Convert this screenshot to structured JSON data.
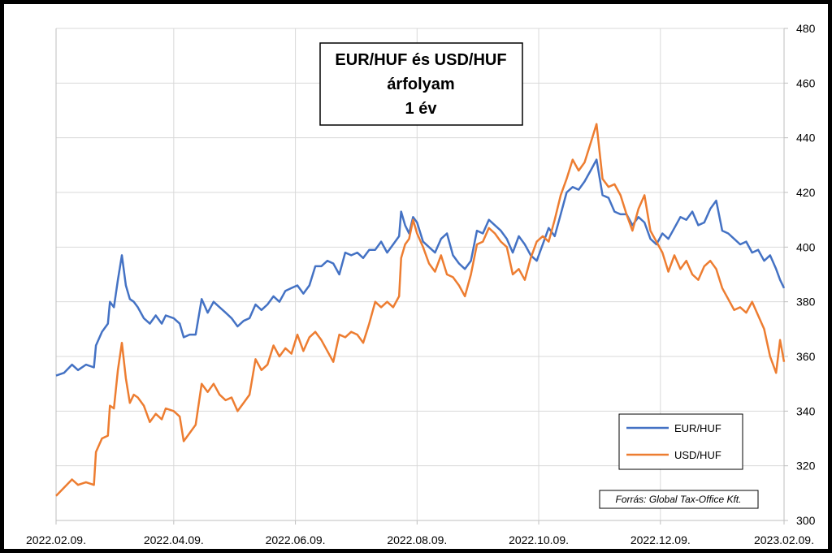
{
  "chart_data": {
    "type": "line",
    "title_lines": [
      "EUR/HUF és USD/HUF",
      "árfolyam",
      "1 év"
    ],
    "source": "Forrás: Global Tax-Office Kft.",
    "x_ticks": [
      "2022.02.09.",
      "2022.04.09.",
      "2022.06.09.",
      "2022.08.09.",
      "2022.10.09.",
      "2022.12.09.",
      "2023.02.09."
    ],
    "y_ticks": [
      300,
      320,
      340,
      360,
      380,
      400,
      420,
      440,
      460,
      480
    ],
    "ylim": [
      300,
      480
    ],
    "xlim": [
      "2022-02-09",
      "2023-02-09"
    ],
    "grid": true,
    "legend_position": "bottom-right",
    "y_axis_side": "right",
    "series": [
      {
        "name": "EUR/HUF",
        "color": "#4472c4",
        "points": [
          [
            "2022-02-09",
            353
          ],
          [
            "2022-02-13",
            354
          ],
          [
            "2022-02-17",
            357
          ],
          [
            "2022-02-20",
            355
          ],
          [
            "2022-02-24",
            357
          ],
          [
            "2022-02-28",
            356
          ],
          [
            "2022-03-01",
            364
          ],
          [
            "2022-03-04",
            369
          ],
          [
            "2022-03-07",
            372
          ],
          [
            "2022-03-08",
            380
          ],
          [
            "2022-03-10",
            378
          ],
          [
            "2022-03-12",
            388
          ],
          [
            "2022-03-14",
            397
          ],
          [
            "2022-03-16",
            386
          ],
          [
            "2022-03-18",
            381
          ],
          [
            "2022-03-20",
            380
          ],
          [
            "2022-03-22",
            378
          ],
          [
            "2022-03-25",
            374
          ],
          [
            "2022-03-28",
            372
          ],
          [
            "2022-03-31",
            375
          ],
          [
            "2022-04-03",
            372
          ],
          [
            "2022-04-05",
            375
          ],
          [
            "2022-04-09",
            374
          ],
          [
            "2022-04-12",
            372
          ],
          [
            "2022-04-14",
            367
          ],
          [
            "2022-04-17",
            368
          ],
          [
            "2022-04-20",
            368
          ],
          [
            "2022-04-23",
            381
          ],
          [
            "2022-04-26",
            376
          ],
          [
            "2022-04-29",
            380
          ],
          [
            "2022-05-02",
            378
          ],
          [
            "2022-05-05",
            376
          ],
          [
            "2022-05-08",
            374
          ],
          [
            "2022-05-11",
            371
          ],
          [
            "2022-05-14",
            373
          ],
          [
            "2022-05-17",
            374
          ],
          [
            "2022-05-20",
            379
          ],
          [
            "2022-05-23",
            377
          ],
          [
            "2022-05-26",
            379
          ],
          [
            "2022-05-29",
            382
          ],
          [
            "2022-06-01",
            380
          ],
          [
            "2022-06-04",
            384
          ],
          [
            "2022-06-07",
            385
          ],
          [
            "2022-06-10",
            386
          ],
          [
            "2022-06-13",
            383
          ],
          [
            "2022-06-16",
            386
          ],
          [
            "2022-06-19",
            393
          ],
          [
            "2022-06-22",
            393
          ],
          [
            "2022-06-25",
            395
          ],
          [
            "2022-06-28",
            394
          ],
          [
            "2022-07-01",
            390
          ],
          [
            "2022-07-04",
            398
          ],
          [
            "2022-07-07",
            397
          ],
          [
            "2022-07-10",
            398
          ],
          [
            "2022-07-13",
            396
          ],
          [
            "2022-07-16",
            399
          ],
          [
            "2022-07-19",
            399
          ],
          [
            "2022-07-22",
            402
          ],
          [
            "2022-07-25",
            398
          ],
          [
            "2022-07-28",
            401
          ],
          [
            "2022-07-31",
            404
          ],
          [
            "2022-08-01",
            413
          ],
          [
            "2022-08-03",
            408
          ],
          [
            "2022-08-05",
            405
          ],
          [
            "2022-08-07",
            411
          ],
          [
            "2022-08-09",
            409
          ],
          [
            "2022-08-12",
            402
          ],
          [
            "2022-08-15",
            400
          ],
          [
            "2022-08-18",
            398
          ],
          [
            "2022-08-21",
            403
          ],
          [
            "2022-08-24",
            405
          ],
          [
            "2022-08-27",
            397
          ],
          [
            "2022-08-30",
            394
          ],
          [
            "2022-09-02",
            392
          ],
          [
            "2022-09-05",
            395
          ],
          [
            "2022-09-08",
            406
          ],
          [
            "2022-09-11",
            405
          ],
          [
            "2022-09-14",
            410
          ],
          [
            "2022-09-17",
            408
          ],
          [
            "2022-09-20",
            406
          ],
          [
            "2022-09-23",
            403
          ],
          [
            "2022-09-26",
            398
          ],
          [
            "2022-09-29",
            404
          ],
          [
            "2022-10-02",
            401
          ],
          [
            "2022-10-05",
            397
          ],
          [
            "2022-10-08",
            395
          ],
          [
            "2022-10-11",
            401
          ],
          [
            "2022-10-14",
            407
          ],
          [
            "2022-10-17",
            404
          ],
          [
            "2022-10-20",
            412
          ],
          [
            "2022-10-23",
            420
          ],
          [
            "2022-10-26",
            422
          ],
          [
            "2022-10-29",
            421
          ],
          [
            "2022-11-01",
            424
          ],
          [
            "2022-11-04",
            428
          ],
          [
            "2022-11-07",
            432
          ],
          [
            "2022-11-10",
            419
          ],
          [
            "2022-11-13",
            418
          ],
          [
            "2022-11-16",
            413
          ],
          [
            "2022-11-19",
            412
          ],
          [
            "2022-11-22",
            412
          ],
          [
            "2022-11-25",
            408
          ],
          [
            "2022-11-28",
            411
          ],
          [
            "2022-12-01",
            409
          ],
          [
            "2022-12-04",
            403
          ],
          [
            "2022-12-07",
            401
          ],
          [
            "2022-12-10",
            405
          ],
          [
            "2022-12-13",
            403
          ],
          [
            "2022-12-16",
            407
          ],
          [
            "2022-12-19",
            411
          ],
          [
            "2022-12-22",
            410
          ],
          [
            "2022-12-25",
            413
          ],
          [
            "2022-12-28",
            408
          ],
          [
            "2022-12-31",
            409
          ],
          [
            "2023-01-03",
            414
          ],
          [
            "2023-01-06",
            417
          ],
          [
            "2023-01-09",
            406
          ],
          [
            "2023-01-12",
            405
          ],
          [
            "2023-01-15",
            403
          ],
          [
            "2023-01-18",
            401
          ],
          [
            "2023-01-21",
            402
          ],
          [
            "2023-01-24",
            398
          ],
          [
            "2023-01-27",
            399
          ],
          [
            "2023-01-30",
            395
          ],
          [
            "2023-02-02",
            397
          ],
          [
            "2023-02-05",
            392
          ],
          [
            "2023-02-07",
            388
          ],
          [
            "2023-02-09",
            385
          ]
        ]
      },
      {
        "name": "USD/HUF",
        "color": "#ed7d31",
        "points": [
          [
            "2022-02-09",
            309
          ],
          [
            "2022-02-13",
            312
          ],
          [
            "2022-02-17",
            315
          ],
          [
            "2022-02-20",
            313
          ],
          [
            "2022-02-24",
            314
          ],
          [
            "2022-02-28",
            313
          ],
          [
            "2022-03-01",
            325
          ],
          [
            "2022-03-04",
            330
          ],
          [
            "2022-03-07",
            331
          ],
          [
            "2022-03-08",
            342
          ],
          [
            "2022-03-10",
            341
          ],
          [
            "2022-03-12",
            355
          ],
          [
            "2022-03-14",
            365
          ],
          [
            "2022-03-16",
            352
          ],
          [
            "2022-03-18",
            343
          ],
          [
            "2022-03-20",
            346
          ],
          [
            "2022-03-22",
            345
          ],
          [
            "2022-03-25",
            342
          ],
          [
            "2022-03-28",
            336
          ],
          [
            "2022-03-31",
            339
          ],
          [
            "2022-04-03",
            337
          ],
          [
            "2022-04-05",
            341
          ],
          [
            "2022-04-09",
            340
          ],
          [
            "2022-04-12",
            338
          ],
          [
            "2022-04-14",
            329
          ],
          [
            "2022-04-17",
            332
          ],
          [
            "2022-04-20",
            335
          ],
          [
            "2022-04-23",
            350
          ],
          [
            "2022-04-26",
            347
          ],
          [
            "2022-04-29",
            350
          ],
          [
            "2022-05-02",
            346
          ],
          [
            "2022-05-05",
            344
          ],
          [
            "2022-05-08",
            345
          ],
          [
            "2022-05-11",
            340
          ],
          [
            "2022-05-14",
            343
          ],
          [
            "2022-05-17",
            346
          ],
          [
            "2022-05-20",
            359
          ],
          [
            "2022-05-23",
            355
          ],
          [
            "2022-05-26",
            357
          ],
          [
            "2022-05-29",
            364
          ],
          [
            "2022-06-01",
            360
          ],
          [
            "2022-06-04",
            363
          ],
          [
            "2022-06-07",
            361
          ],
          [
            "2022-06-10",
            368
          ],
          [
            "2022-06-13",
            362
          ],
          [
            "2022-06-16",
            367
          ],
          [
            "2022-06-19",
            369
          ],
          [
            "2022-06-22",
            366
          ],
          [
            "2022-06-25",
            362
          ],
          [
            "2022-06-28",
            358
          ],
          [
            "2022-07-01",
            368
          ],
          [
            "2022-07-04",
            367
          ],
          [
            "2022-07-07",
            369
          ],
          [
            "2022-07-10",
            368
          ],
          [
            "2022-07-13",
            365
          ],
          [
            "2022-07-16",
            372
          ],
          [
            "2022-07-19",
            380
          ],
          [
            "2022-07-22",
            378
          ],
          [
            "2022-07-25",
            380
          ],
          [
            "2022-07-28",
            378
          ],
          [
            "2022-07-31",
            382
          ],
          [
            "2022-08-01",
            396
          ],
          [
            "2022-08-03",
            401
          ],
          [
            "2022-08-05",
            403
          ],
          [
            "2022-08-07",
            410
          ],
          [
            "2022-08-09",
            405
          ],
          [
            "2022-08-12",
            400
          ],
          [
            "2022-08-15",
            394
          ],
          [
            "2022-08-18",
            391
          ],
          [
            "2022-08-21",
            397
          ],
          [
            "2022-08-24",
            390
          ],
          [
            "2022-08-27",
            389
          ],
          [
            "2022-08-30",
            386
          ],
          [
            "2022-09-02",
            382
          ],
          [
            "2022-09-05",
            390
          ],
          [
            "2022-09-08",
            401
          ],
          [
            "2022-09-11",
            402
          ],
          [
            "2022-09-14",
            407
          ],
          [
            "2022-09-17",
            405
          ],
          [
            "2022-09-20",
            402
          ],
          [
            "2022-09-23",
            400
          ],
          [
            "2022-09-26",
            390
          ],
          [
            "2022-09-29",
            392
          ],
          [
            "2022-10-02",
            388
          ],
          [
            "2022-10-05",
            396
          ],
          [
            "2022-10-08",
            402
          ],
          [
            "2022-10-11",
            404
          ],
          [
            "2022-10-14",
            402
          ],
          [
            "2022-10-17",
            410
          ],
          [
            "2022-10-20",
            419
          ],
          [
            "2022-10-23",
            425
          ],
          [
            "2022-10-26",
            432
          ],
          [
            "2022-10-29",
            428
          ],
          [
            "2022-11-01",
            431
          ],
          [
            "2022-11-04",
            438
          ],
          [
            "2022-11-07",
            445
          ],
          [
            "2022-11-10",
            425
          ],
          [
            "2022-11-13",
            422
          ],
          [
            "2022-11-16",
            423
          ],
          [
            "2022-11-19",
            419
          ],
          [
            "2022-11-22",
            412
          ],
          [
            "2022-11-25",
            406
          ],
          [
            "2022-11-28",
            414
          ],
          [
            "2022-12-01",
            419
          ],
          [
            "2022-12-04",
            406
          ],
          [
            "2022-12-07",
            402
          ],
          [
            "2022-12-10",
            398
          ],
          [
            "2022-12-13",
            391
          ],
          [
            "2022-12-16",
            397
          ],
          [
            "2022-12-19",
            392
          ],
          [
            "2022-12-22",
            395
          ],
          [
            "2022-12-25",
            390
          ],
          [
            "2022-12-28",
            388
          ],
          [
            "2022-12-31",
            393
          ],
          [
            "2023-01-03",
            395
          ],
          [
            "2023-01-06",
            392
          ],
          [
            "2023-01-09",
            385
          ],
          [
            "2023-01-12",
            381
          ],
          [
            "2023-01-15",
            377
          ],
          [
            "2023-01-18",
            378
          ],
          [
            "2023-01-21",
            376
          ],
          [
            "2023-01-24",
            380
          ],
          [
            "2023-01-27",
            375
          ],
          [
            "2023-01-30",
            370
          ],
          [
            "2023-02-02",
            360
          ],
          [
            "2023-02-05",
            354
          ],
          [
            "2023-02-07",
            366
          ],
          [
            "2023-02-09",
            358
          ]
        ]
      }
    ]
  }
}
